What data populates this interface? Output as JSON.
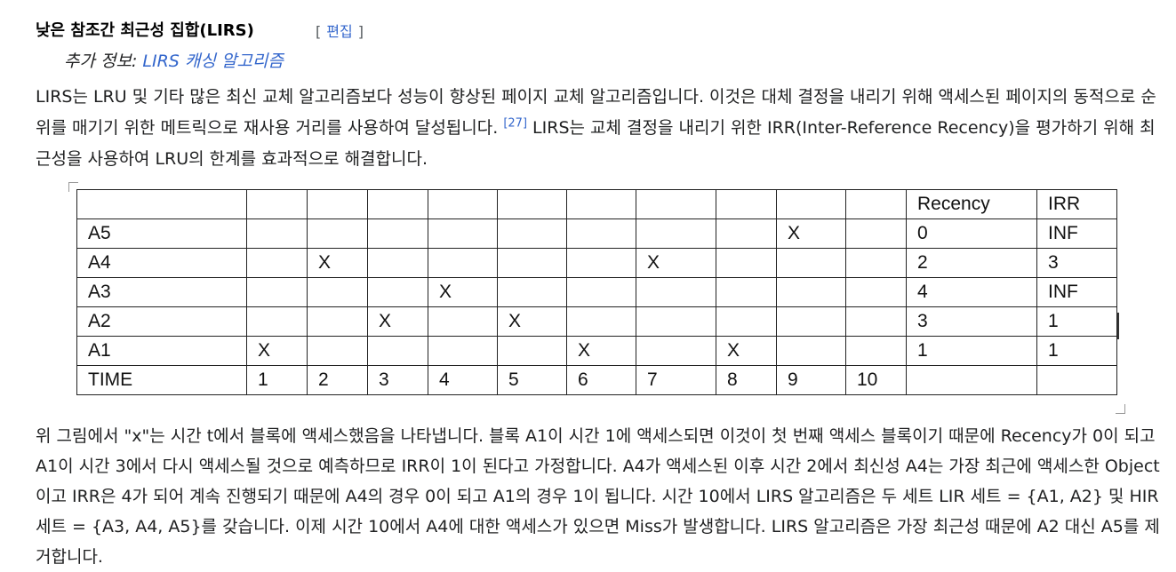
{
  "section": {
    "heading": "낮은 참조간 최근성 집합(LIRS)",
    "edit_open": "[",
    "edit_label": "편집",
    "edit_close": "]"
  },
  "hatnote": {
    "prefix": "추가 정보: ",
    "link": "LIRS 캐싱 알고리즘"
  },
  "para1": {
    "text_a": "LIRS는 LRU 및 기타 많은 최신 교체 알고리즘보다 성능이 향상된 페이지 교체 알고리즘입니다. 이것은 대체 결정을 내리기 위해 액세스된 페이지의 동적으로 순위를 매기기 위한 메트릭으로 재사용 거리를 사용하여 달성됩니다. ",
    "citation": "[27]",
    "text_b": " LIRS는 교체 결정을 내리기 위한 IRR(Inter-Reference Recency)을 평가하기 위해 최근성을 사용하여 LRU의 한계를 효과적으로 해결합니다."
  },
  "table": {
    "header": [
      "",
      "",
      "",
      "",
      "",
      "",
      "",
      "",
      "",
      "",
      "",
      "Recency",
      "IRR"
    ],
    "rows": [
      [
        "A5",
        "",
        "",
        "",
        "",
        "",
        "",
        "",
        "",
        "X",
        "",
        "0",
        "INF"
      ],
      [
        "A4",
        "",
        "X",
        "",
        "",
        "",
        "",
        "X",
        "",
        "",
        "",
        "2",
        "3"
      ],
      [
        "A3",
        "",
        "",
        "",
        "X",
        "",
        "",
        "",
        "",
        "",
        "",
        "4",
        "INF"
      ],
      [
        "A2",
        "",
        "",
        "X",
        "",
        "X",
        "",
        "",
        "",
        "",
        "",
        "3",
        "1"
      ],
      [
        "A1",
        "X",
        "",
        "",
        "",
        "",
        "X",
        "",
        "X",
        "",
        "",
        "1",
        "1"
      ],
      [
        "TIME",
        "1",
        "2",
        "3",
        "4",
        "5",
        "6",
        "7",
        "8",
        "9",
        "10",
        "",
        ""
      ]
    ]
  },
  "para2": {
    "text": "위 그림에서 \"x\"는 시간 t에서 블록에 액세스했음을 나타냅니다. 블록 A1이 시간 1에 액세스되면 이것이 첫 번째 액세스 블록이기 때문에 Recency가 0이 되고 A1이 시간 3에서 다시 액세스될 것으로 예측하므로 IRR이 1이 된다고 가정합니다. A4가 액세스된 이후 시간 2에서 최신성 A4는 가장 최근에 액세스한 Object이고 IRR은 4가 되어 계속 진행되기 때문에 A4의 경우 0이 되고 A1의 경우 1이 됩니다. 시간 10에서 LIRS 알고리즘은 두 세트 LIR 세트 = {A1, A2} 및 HIR 세트 = {A3, A4, A5}를 갖습니다. 이제 시간 10에서 A4에 대한 액세스가 있으면 Miss가 발생합니다. LIRS 알고리즘은 가장 최근성 때문에 A2 대신 A5를 제거합니다."
  }
}
